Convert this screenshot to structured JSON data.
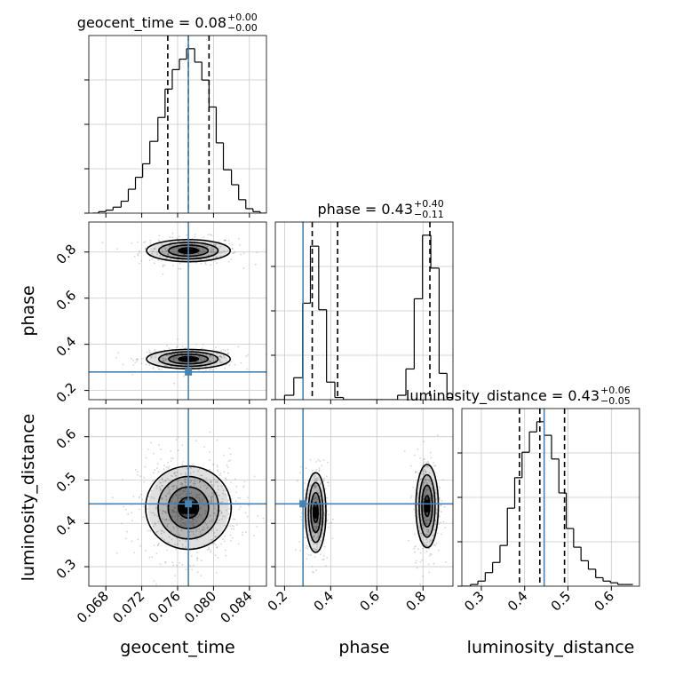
{
  "chart_data": {
    "type": "corner",
    "parameters": [
      "geocent_time",
      "phase",
      "luminosity_distance"
    ],
    "truths": {
      "geocent_time": 0.0772,
      "phase": 0.28,
      "luminosity_distance": 0.445
    },
    "colors": {
      "truth": "#4682b4",
      "hist": "#000000",
      "grid": "#c8c8c8",
      "points": "#808080"
    },
    "grid": true,
    "titles": [
      {
        "param": "geocent_time",
        "prefix": "geocent_time = 0.08",
        "plus": "+0.00",
        "minus": "−0.00"
      },
      {
        "param": "phase",
        "prefix": "phase = 0.43",
        "plus": "+0.40",
        "minus": "−0.11"
      },
      {
        "param": "luminosity_distance",
        "prefix": "luminosity_distance = 0.43",
        "plus": "+0.06",
        "minus": "−0.05"
      }
    ],
    "axes": {
      "geocent_time": {
        "label": "geocent_time",
        "range": [
          0.0661,
          0.0859
        ],
        "ticks": [
          0.068,
          0.072,
          0.076,
          0.08,
          0.084
        ],
        "tick_labels": [
          "0.068",
          "0.072",
          "0.076",
          "0.080",
          "0.084"
        ]
      },
      "phase": {
        "label": "phase",
        "range": [
          0.16,
          0.93
        ],
        "ticks": [
          0.2,
          0.4,
          0.6,
          0.8
        ],
        "tick_labels": [
          "0.2",
          "0.4",
          "0.6",
          "0.8"
        ]
      },
      "luminosity_distance": {
        "label": "luminosity_distance",
        "range": [
          0.255,
          0.665
        ],
        "ticks": [
          0.3,
          0.4,
          0.5,
          0.6
        ],
        "tick_labels": [
          "0.3",
          "0.4",
          "0.5",
          "0.6"
        ]
      }
    },
    "histograms": {
      "geocent_time": {
        "quantiles": [
          0.0749,
          0.0772,
          0.0795
        ],
        "bins": [
          {
            "x0": 0.0665,
            "x1": 0.0672,
            "count": 0
          },
          {
            "x0": 0.0672,
            "x1": 0.068,
            "count": 1
          },
          {
            "x0": 0.068,
            "x1": 0.0688,
            "count": 2
          },
          {
            "x0": 0.0688,
            "x1": 0.0697,
            "count": 4
          },
          {
            "x0": 0.0697,
            "x1": 0.0705,
            "count": 8
          },
          {
            "x0": 0.0705,
            "x1": 0.0713,
            "count": 16
          },
          {
            "x0": 0.0713,
            "x1": 0.0721,
            "count": 24
          },
          {
            "x0": 0.0721,
            "x1": 0.0729,
            "count": 33
          },
          {
            "x0": 0.0729,
            "x1": 0.0738,
            "count": 48
          },
          {
            "x0": 0.0738,
            "x1": 0.0746,
            "count": 64
          },
          {
            "x0": 0.0746,
            "x1": 0.0754,
            "count": 83
          },
          {
            "x0": 0.0754,
            "x1": 0.0762,
            "count": 96
          },
          {
            "x0": 0.0762,
            "x1": 0.077,
            "count": 103
          },
          {
            "x0": 0.077,
            "x1": 0.0779,
            "count": 110
          },
          {
            "x0": 0.0779,
            "x1": 0.0787,
            "count": 101
          },
          {
            "x0": 0.0787,
            "x1": 0.0795,
            "count": 89
          },
          {
            "x0": 0.0795,
            "x1": 0.0803,
            "count": 71
          },
          {
            "x0": 0.0803,
            "x1": 0.0811,
            "count": 47
          },
          {
            "x0": 0.0811,
            "x1": 0.082,
            "count": 29
          },
          {
            "x0": 0.082,
            "x1": 0.0828,
            "count": 19
          },
          {
            "x0": 0.0828,
            "x1": 0.0836,
            "count": 9
          },
          {
            "x0": 0.0836,
            "x1": 0.0844,
            "count": 3
          },
          {
            "x0": 0.0844,
            "x1": 0.0852,
            "count": 1
          },
          {
            "x0": 0.0852,
            "x1": 0.0859,
            "count": 0
          }
        ]
      },
      "phase": {
        "quantiles": [
          0.32,
          0.43,
          0.83
        ],
        "bins": [
          {
            "x0": 0.16,
            "x1": 0.2,
            "count": 0
          },
          {
            "x0": 0.2,
            "x1": 0.24,
            "count": 2
          },
          {
            "x0": 0.24,
            "x1": 0.278,
            "count": 10
          },
          {
            "x0": 0.278,
            "x1": 0.312,
            "count": 44
          },
          {
            "x0": 0.312,
            "x1": 0.348,
            "count": 70
          },
          {
            "x0": 0.348,
            "x1": 0.382,
            "count": 41
          },
          {
            "x0": 0.382,
            "x1": 0.418,
            "count": 8
          },
          {
            "x0": 0.418,
            "x1": 0.455,
            "count": 1
          },
          {
            "x0": 0.455,
            "x1": 0.49,
            "count": 0
          },
          {
            "x0": 0.49,
            "x1": 0.53,
            "count": 0
          },
          {
            "x0": 0.53,
            "x1": 0.57,
            "count": 0
          },
          {
            "x0": 0.57,
            "x1": 0.61,
            "count": 0
          },
          {
            "x0": 0.61,
            "x1": 0.65,
            "count": 0
          },
          {
            "x0": 0.65,
            "x1": 0.69,
            "count": 0
          },
          {
            "x0": 0.69,
            "x1": 0.726,
            "count": 2
          },
          {
            "x0": 0.726,
            "x1": 0.762,
            "count": 14
          },
          {
            "x0": 0.762,
            "x1": 0.798,
            "count": 46
          },
          {
            "x0": 0.798,
            "x1": 0.834,
            "count": 75
          },
          {
            "x0": 0.834,
            "x1": 0.87,
            "count": 60
          },
          {
            "x0": 0.87,
            "x1": 0.904,
            "count": 12
          },
          {
            "x0": 0.904,
            "x1": 0.93,
            "count": 1
          }
        ]
      },
      "luminosity_distance": {
        "quantiles": [
          0.388,
          0.435,
          0.492
        ],
        "bins": [
          {
            "x0": 0.255,
            "x1": 0.275,
            "count": 0
          },
          {
            "x0": 0.275,
            "x1": 0.292,
            "count": 1
          },
          {
            "x0": 0.292,
            "x1": 0.309,
            "count": 3
          },
          {
            "x0": 0.309,
            "x1": 0.326,
            "count": 8
          },
          {
            "x0": 0.326,
            "x1": 0.343,
            "count": 14
          },
          {
            "x0": 0.343,
            "x1": 0.36,
            "count": 24
          },
          {
            "x0": 0.36,
            "x1": 0.377,
            "count": 46
          },
          {
            "x0": 0.377,
            "x1": 0.394,
            "count": 64
          },
          {
            "x0": 0.394,
            "x1": 0.411,
            "count": 79
          },
          {
            "x0": 0.411,
            "x1": 0.428,
            "count": 91
          },
          {
            "x0": 0.428,
            "x1": 0.445,
            "count": 97
          },
          {
            "x0": 0.445,
            "x1": 0.462,
            "count": 89
          },
          {
            "x0": 0.462,
            "x1": 0.479,
            "count": 75
          },
          {
            "x0": 0.479,
            "x1": 0.496,
            "count": 55
          },
          {
            "x0": 0.496,
            "x1": 0.513,
            "count": 34
          },
          {
            "x0": 0.513,
            "x1": 0.53,
            "count": 23
          },
          {
            "x0": 0.53,
            "x1": 0.547,
            "count": 15
          },
          {
            "x0": 0.547,
            "x1": 0.564,
            "count": 10
          },
          {
            "x0": 0.564,
            "x1": 0.581,
            "count": 5
          },
          {
            "x0": 0.581,
            "x1": 0.598,
            "count": 3
          },
          {
            "x0": 0.598,
            "x1": 0.615,
            "count": 2
          },
          {
            "x0": 0.615,
            "x1": 0.632,
            "count": 1
          },
          {
            "x0": 0.632,
            "x1": 0.65,
            "count": 1
          }
        ]
      }
    },
    "contours": {
      "geocent_time__phase": [
        {
          "param_x": "geocent_time",
          "param_y": "phase",
          "cx": 0.0772,
          "cy": 0.806,
          "sx": 0.0022,
          "sy": 0.024,
          "weight": 0.5
        },
        {
          "param_x": "geocent_time",
          "param_y": "phase",
          "cx": 0.0772,
          "cy": 0.336,
          "sx": 0.0022,
          "sy": 0.021,
          "weight": 0.5
        }
      ],
      "geocent_time__luminosity_distance": [
        {
          "param_x": "geocent_time",
          "param_y": "luminosity_distance",
          "cx": 0.0772,
          "cy": 0.436,
          "sx": 0.00225,
          "sy": 0.048,
          "weight": 1.0
        }
      ],
      "phase__luminosity_distance": [
        {
          "param_x": "phase",
          "param_y": "luminosity_distance",
          "cx": 0.335,
          "cy": 0.425,
          "sx": 0.021,
          "sy": 0.046,
          "weight": 0.5
        },
        {
          "param_x": "phase",
          "param_y": "luminosity_distance",
          "cx": 0.818,
          "cy": 0.44,
          "sx": 0.023,
          "sy": 0.048,
          "weight": 0.5
        }
      ]
    }
  }
}
